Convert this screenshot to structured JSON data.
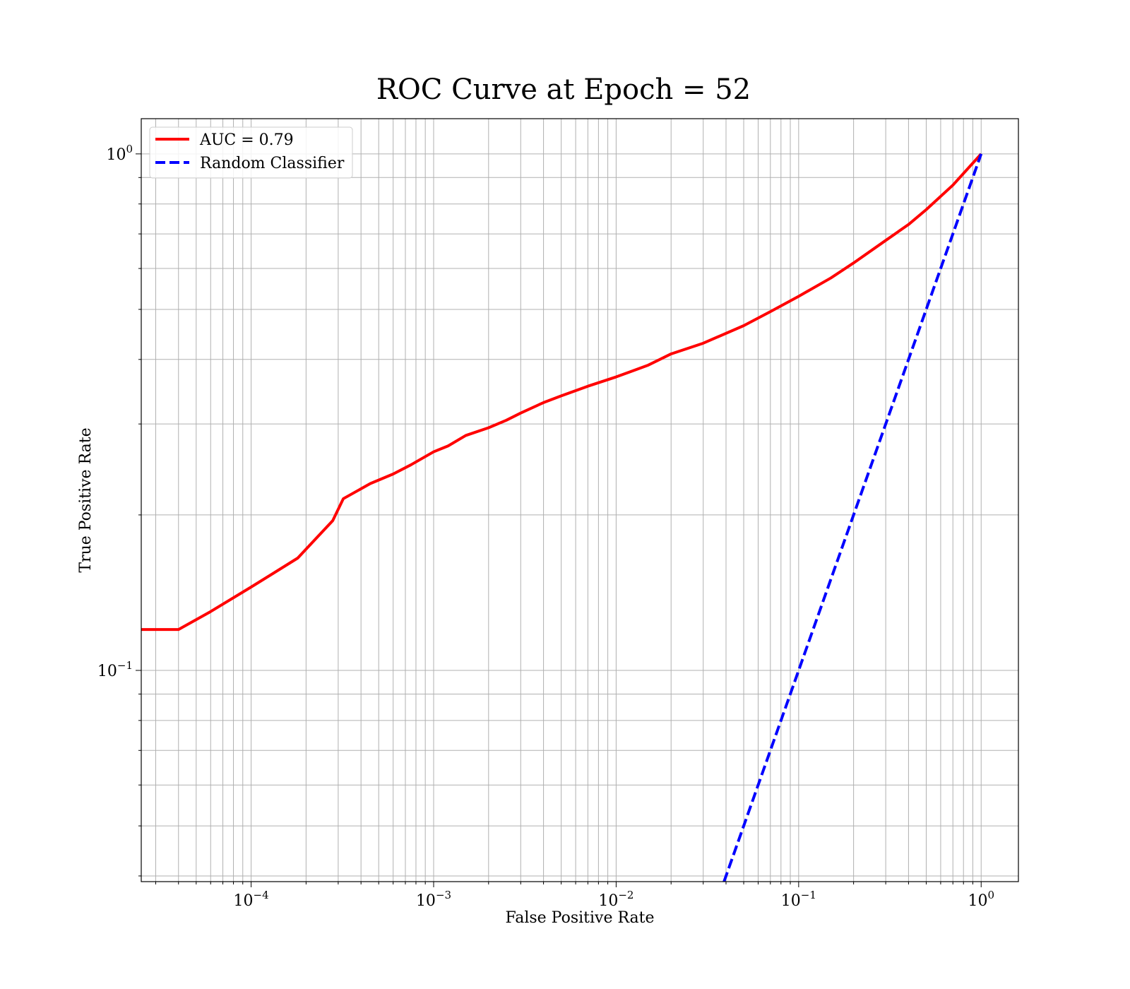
{
  "chart_data": {
    "type": "line",
    "title": "ROC Curve at Epoch = 52",
    "xlabel": "False Positive Rate",
    "ylabel": "True Positive Rate",
    "xscale": "log",
    "yscale": "log",
    "xlim": [
      2.5e-05,
      1.6
    ],
    "ylim": [
      0.039,
      1.17
    ],
    "grid": "both-major-minor",
    "legend_position": "upper-left",
    "x_ticks": [
      {
        "base": "10",
        "exp": "−4"
      },
      {
        "base": "10",
        "exp": "−3"
      },
      {
        "base": "10",
        "exp": "−2"
      },
      {
        "base": "10",
        "exp": "−1"
      },
      {
        "base": "10",
        "exp": "0"
      }
    ],
    "y_ticks": [
      {
        "base": "10",
        "exp": "−1"
      },
      {
        "base": "10",
        "exp": "0"
      }
    ],
    "series": [
      {
        "name": "AUC = 0.79",
        "color": "#ff0000",
        "dash": "solid",
        "x": [
          2.5e-05,
          4e-05,
          6e-05,
          0.0001,
          0.00018,
          0.00028,
          0.00032,
          0.00045,
          0.0006,
          0.00075,
          0.001,
          0.0012,
          0.0015,
          0.002,
          0.0025,
          0.003,
          0.004,
          0.005,
          0.007,
          0.01,
          0.015,
          0.02,
          0.03,
          0.05,
          0.07,
          0.1,
          0.15,
          0.2,
          0.3,
          0.4,
          0.5,
          0.7,
          1.0
        ],
        "y": [
          0.12,
          0.12,
          0.13,
          0.145,
          0.165,
          0.195,
          0.215,
          0.23,
          0.24,
          0.25,
          0.265,
          0.272,
          0.285,
          0.295,
          0.305,
          0.315,
          0.33,
          0.34,
          0.355,
          0.37,
          0.39,
          0.41,
          0.43,
          0.465,
          0.495,
          0.53,
          0.575,
          0.615,
          0.68,
          0.73,
          0.78,
          0.87,
          1.0
        ]
      },
      {
        "name": "Random Classifier",
        "color": "#0000ff",
        "dash": "dashed",
        "x": [
          0.039,
          1.0
        ],
        "y": [
          0.039,
          1.0
        ]
      }
    ]
  }
}
